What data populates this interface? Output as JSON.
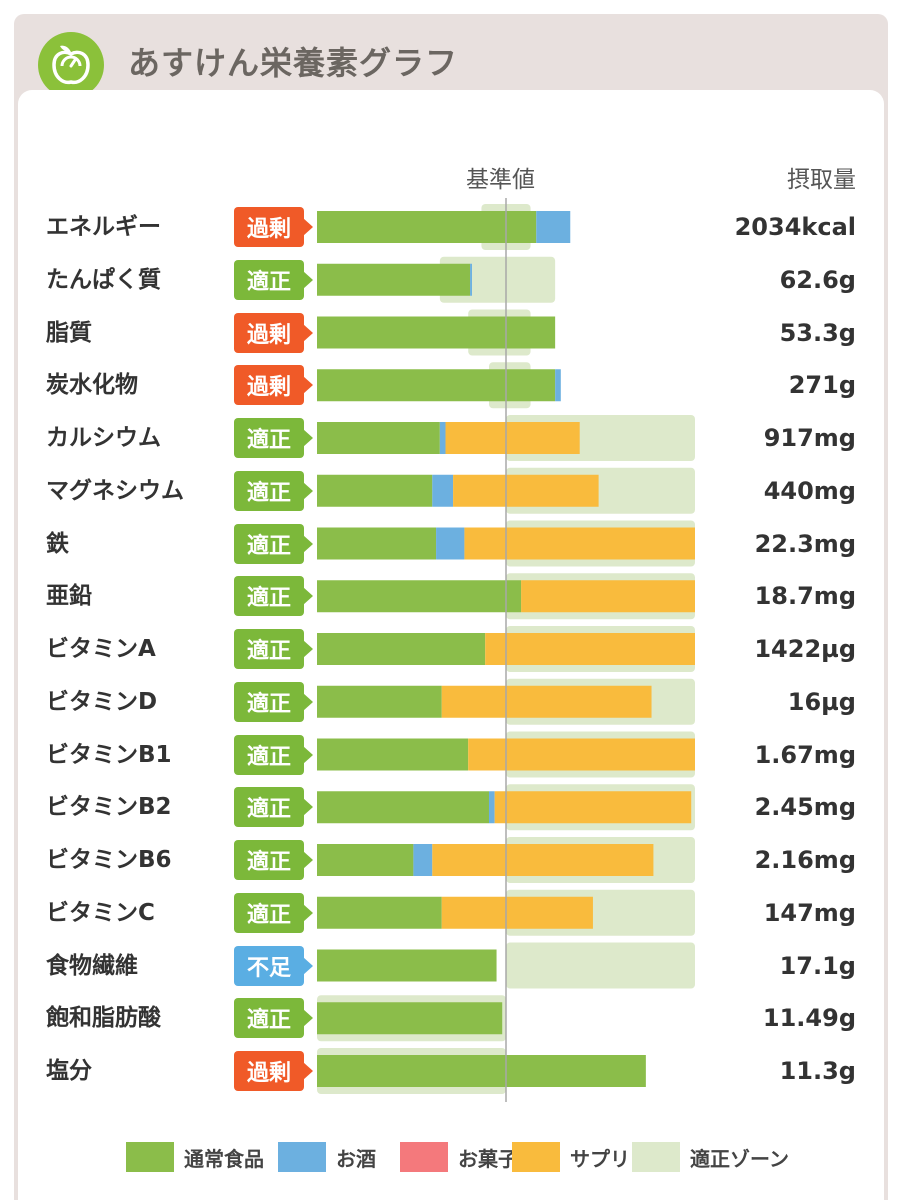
{
  "header": {
    "title": "あすけん栄養素グラフ",
    "icon": "apple-scale-icon"
  },
  "columns": {
    "reference": "基準値",
    "intake": "摂取量"
  },
  "colors": {
    "normal_food": "#8bbd4a",
    "alcohol": "#6cb0e0",
    "snack": "#f4797c",
    "supplement": "#f9bb3d",
    "zone": "#dde9cb",
    "status_excess": "#f05a28",
    "status_ok": "#7cb83a",
    "status_low": "#5aaee3"
  },
  "legend": [
    {
      "key": "normal_food",
      "label": "通常食品"
    },
    {
      "key": "alcohol",
      "label": "お酒"
    },
    {
      "key": "snack",
      "label": "お菓子"
    },
    {
      "key": "supplement",
      "label": "サプリ"
    },
    {
      "key": "zone",
      "label": "適正ゾーン"
    }
  ],
  "chart_data": {
    "type": "bar",
    "orientation": "horizontal",
    "stacked": true,
    "reference_line": 100,
    "xlim": [
      0,
      200
    ],
    "value_unit": "% of reference",
    "categories": [
      "エネルギー",
      "たんぱく質",
      "脂質",
      "炭水化物",
      "カルシウム",
      "マグネシウム",
      "鉄",
      "亜鉛",
      "ビタミンA",
      "ビタミンD",
      "ビタミンB1",
      "ビタミンB2",
      "ビタミンB6",
      "ビタミンC",
      "食物繊維",
      "飽和脂肪酸",
      "塩分"
    ],
    "status": [
      "過剰",
      "適正",
      "過剰",
      "過剰",
      "適正",
      "適正",
      "適正",
      "適正",
      "適正",
      "適正",
      "適正",
      "適正",
      "適正",
      "適正",
      "不足",
      "適正",
      "過剰"
    ],
    "intake": [
      "2034kcal",
      "62.6g",
      "53.3g",
      "271g",
      "917mg",
      "440mg",
      "22.3mg",
      "18.7mg",
      "1422µg",
      "16µg",
      "1.67mg",
      "2.45mg",
      "2.16mg",
      "147mg",
      "17.1g",
      "11.49g",
      "11.3g"
    ],
    "series": [
      {
        "name": "通常食品",
        "values": [
          116,
          81,
          126,
          126,
          65,
          61,
          63,
          108,
          89,
          66,
          80,
          91,
          51,
          66,
          95,
          98,
          174
        ]
      },
      {
        "name": "お酒",
        "values": [
          18,
          1,
          0,
          3,
          3,
          11,
          15,
          0,
          0,
          0,
          0,
          3,
          10,
          0,
          0,
          0,
          0
        ]
      },
      {
        "name": "お菓子",
        "values": [
          0,
          0,
          0,
          0,
          0,
          0,
          0,
          0,
          0,
          0,
          0,
          0,
          0,
          0,
          0,
          0,
          0
        ]
      },
      {
        "name": "サプリ",
        "values": [
          0,
          0,
          0,
          0,
          71,
          77,
          122,
          92,
          111,
          111,
          120,
          104,
          117,
          80,
          0,
          0,
          0
        ]
      }
    ],
    "optimal_zone": [
      [
        87,
        113
      ],
      [
        65,
        126
      ],
      [
        80,
        113
      ],
      [
        91,
        113
      ],
      [
        100,
        200
      ],
      [
        100,
        200
      ],
      [
        100,
        200
      ],
      [
        100,
        200
      ],
      [
        100,
        200
      ],
      [
        100,
        200
      ],
      [
        100,
        200
      ],
      [
        100,
        200
      ],
      [
        100,
        200
      ],
      [
        100,
        200
      ],
      [
        100,
        200
      ],
      [
        0,
        100
      ],
      [
        0,
        100
      ]
    ]
  }
}
